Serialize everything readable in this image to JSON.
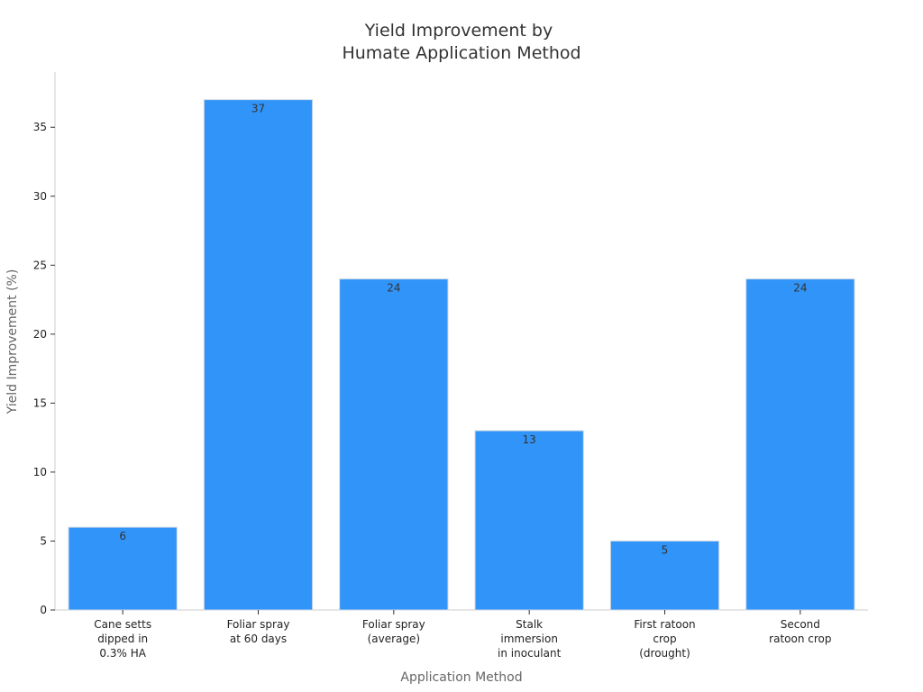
{
  "chart_data": {
    "type": "bar",
    "title": [
      "Yield Improvement by",
      "Humate Application Method"
    ],
    "xlabel": "Application Method",
    "ylabel": "Yield Improvement (%)",
    "categories": [
      [
        "Cane setts",
        "dipped in",
        "0.3% HA"
      ],
      [
        "Foliar spray",
        "at 60 days"
      ],
      [
        "Foliar spray",
        "(average)"
      ],
      [
        "Stalk",
        "immersion",
        "in inoculant"
      ],
      [
        "First ratoon",
        "crop",
        "(drought)"
      ],
      [
        "Second",
        "ratoon crop"
      ]
    ],
    "values": [
      6,
      37,
      24,
      13,
      5,
      24
    ],
    "data_labels": [
      "6",
      "37",
      "24",
      "13",
      "5",
      "24"
    ],
    "ylim": [
      0,
      39
    ],
    "yticks": [
      0,
      5,
      10,
      15,
      20,
      25,
      30,
      35
    ],
    "grid": false,
    "legend": "none",
    "bar_color": "#3194f8"
  }
}
